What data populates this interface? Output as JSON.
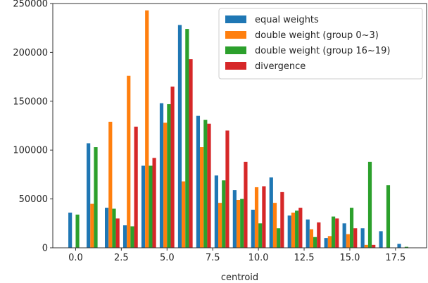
{
  "chart_data": {
    "type": "bar",
    "xlabel": "centroid",
    "ylabel": "",
    "xlim": [
      -1.25,
      19.2
    ],
    "ylim": [
      0,
      250000
    ],
    "grid": false,
    "legend_position": "top-right",
    "xticks": [
      0.0,
      2.5,
      5.0,
      7.5,
      10.0,
      12.5,
      15.0,
      17.5
    ],
    "xtick_labels": [
      "0.0",
      "2.5",
      "5.0",
      "7.5",
      "10.0",
      "12.5",
      "15.0",
      "17.5"
    ],
    "yticks": [
      0,
      50000,
      100000,
      150000,
      200000,
      250000
    ],
    "ytick_labels": [
      "0",
      "50000",
      "100000",
      "150000",
      "200000",
      "250000"
    ],
    "x": [
      0,
      1,
      2,
      3,
      4,
      5,
      6,
      7,
      8,
      9,
      10,
      11,
      12,
      13,
      14,
      15,
      16,
      17,
      18
    ],
    "series": [
      {
        "name": "equal weights",
        "color": "#1f77b4",
        "values": [
          36000,
          107000,
          41000,
          23000,
          84000,
          148000,
          228000,
          135000,
          74000,
          59000,
          39000,
          72000,
          33000,
          29000,
          10000,
          25000,
          20000,
          17000,
          4000
        ]
      },
      {
        "name": "double weight (group 0~3)",
        "color": "#ff7f0e",
        "values": [
          0,
          45000,
          129000,
          176000,
          243000,
          128000,
          68000,
          103000,
          46000,
          49000,
          62000,
          46000,
          36000,
          19000,
          12000,
          14000,
          3000,
          0,
          0
        ]
      },
      {
        "name": "double weight (group 16~19)",
        "color": "#2ca02c",
        "values": [
          34000,
          103000,
          40000,
          22000,
          84000,
          147000,
          224000,
          131000,
          69000,
          50000,
          25000,
          20000,
          38000,
          11000,
          32000,
          41000,
          88000,
          64000,
          1000
        ]
      },
      {
        "name": "divergence",
        "color": "#d62728",
        "values": [
          0,
          0,
          30000,
          124000,
          92000,
          165000,
          193000,
          127000,
          120000,
          88000,
          63000,
          57000,
          41000,
          26000,
          30000,
          20000,
          3000,
          0,
          0
        ]
      }
    ]
  }
}
